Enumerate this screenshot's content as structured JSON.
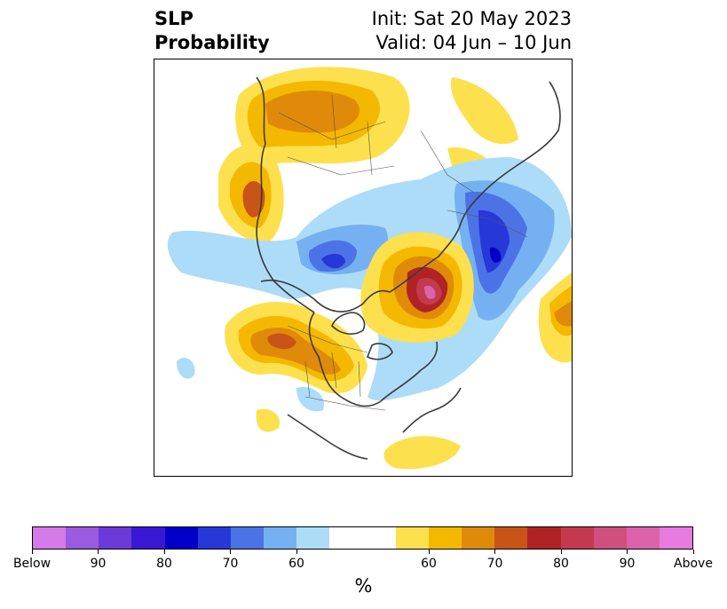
{
  "title": {
    "left_line1": "SLP",
    "left_line2": "Probability",
    "right_line1": "Init: Sat 20 May 2023",
    "right_line2": "Valid: 04 Jun – 10 Jun"
  },
  "colorbar": {
    "colors": [
      "#d57ae9",
      "#9b5ae0",
      "#6c3ad9",
      "#3a17d5",
      "#0000c8",
      "#2638d8",
      "#4c73e6",
      "#75b1f2",
      "#addcf8",
      "#ffffff",
      "#ffffff",
      "#fde04d",
      "#f5b800",
      "#e08a0a",
      "#c85418",
      "#b12225",
      "#c33a4f",
      "#cf4f7e",
      "#dc63aa",
      "#e87ae0"
    ],
    "tick_labels": [
      "Below",
      "90",
      "80",
      "70",
      "60",
      "60",
      "70",
      "80",
      "90",
      "Above"
    ],
    "unit": "%"
  },
  "legend_colors": {
    "above_60": "#fde04d",
    "above_65": "#f5b800",
    "above_70": "#e08a0a",
    "above_75": "#c85418",
    "above_80": "#b12225",
    "above_85": "#c33a4f",
    "above_90": "#cf4f7e",
    "below_60": "#addcf8",
    "below_65": "#75b1f2",
    "below_70": "#4c73e6",
    "below_75": "#2638d8",
    "below_80": "#0000c8"
  }
}
